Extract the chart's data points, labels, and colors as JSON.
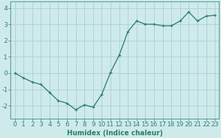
{
  "x": [
    0,
    1,
    2,
    3,
    4,
    5,
    6,
    7,
    8,
    9,
    10,
    11,
    12,
    13,
    14,
    15,
    16,
    17,
    18,
    19,
    20,
    21,
    22,
    23
  ],
  "y": [
    0.0,
    -0.3,
    -0.55,
    -0.7,
    -1.2,
    -1.7,
    -1.85,
    -2.25,
    -1.95,
    -2.1,
    -1.3,
    0.05,
    1.1,
    2.55,
    3.2,
    3.0,
    3.0,
    2.9,
    2.9,
    3.2,
    3.75,
    3.2,
    3.5,
    3.55
  ],
  "line_color": "#2e7d6e",
  "marker": "+",
  "marker_color": "#2e7d6e",
  "bg_color": "#ceeaea",
  "grid_color": "#aacece",
  "xlabel": "Humidex (Indice chaleur)",
  "xlim": [
    -0.5,
    23.5
  ],
  "ylim": [
    -2.8,
    4.4
  ],
  "yticks": [
    -2,
    -1,
    0,
    1,
    2,
    3,
    4
  ],
  "xticks": [
    0,
    1,
    2,
    3,
    4,
    5,
    6,
    7,
    8,
    9,
    10,
    11,
    12,
    13,
    14,
    15,
    16,
    17,
    18,
    19,
    20,
    21,
    22,
    23
  ],
  "linewidth": 1.0,
  "markersize": 3.5,
  "xlabel_fontsize": 7,
  "tick_fontsize": 6.5
}
